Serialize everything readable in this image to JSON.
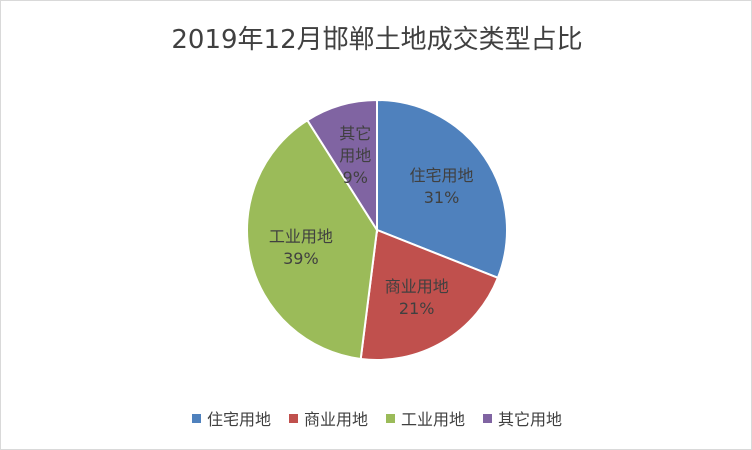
{
  "chart_data": {
    "type": "pie",
    "title": "2019年12月邯郸土地成交类型占比",
    "slices": [
      {
        "name": "住宅用地",
        "value": 31,
        "label": "31%",
        "color": "#4f81bd"
      },
      {
        "name": "商业用地",
        "value": 21,
        "label": "21%",
        "color": "#c0504d"
      },
      {
        "name": "工业用地",
        "value": 39,
        "label": "39%",
        "color": "#9bbb59"
      },
      {
        "name": "其它用地",
        "value": 9,
        "label": "9%",
        "color": "#8064a2"
      }
    ],
    "data_label_lines": {
      "其它用地": [
        "其它",
        "用地"
      ]
    },
    "legend_position": "bottom",
    "legend_labels": [
      "住宅用地",
      "商业用地",
      "工业用地",
      "其它用地"
    ]
  }
}
